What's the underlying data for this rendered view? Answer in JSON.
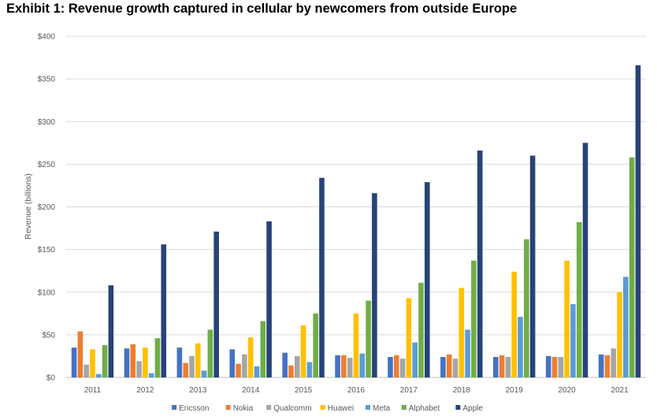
{
  "title": "Exhibit 1: Revenue growth captured in cellular by newcomers from outside Europe",
  "chart_data": {
    "type": "bar",
    "title": "Exhibit 1: Revenue growth captured in cellular by newcomers from outside Europe",
    "xlabel": "",
    "ylabel": "Revenue (billions)",
    "ylim": [
      0,
      400
    ],
    "yticks": [
      0,
      50,
      100,
      150,
      200,
      250,
      300,
      350,
      400
    ],
    "ytick_labels": [
      "$0",
      "$50",
      "$100",
      "$150",
      "$200",
      "$250",
      "$300",
      "$350",
      "$400"
    ],
    "grid": true,
    "legend_position": "bottom",
    "categories": [
      "2011",
      "2012",
      "2013",
      "2014",
      "2015",
      "2016",
      "2017",
      "2018",
      "2019",
      "2020",
      "2021"
    ],
    "series": [
      {
        "name": "Ericsson",
        "color": "#4472C4",
        "values": [
          35,
          34,
          35,
          33,
          29,
          26,
          24,
          24,
          24,
          25,
          27
        ]
      },
      {
        "name": "Nokia",
        "color": "#ED7D31",
        "values": [
          54,
          39,
          17,
          16,
          14,
          26,
          26,
          27,
          26,
          24,
          26
        ]
      },
      {
        "name": "Qualcomm",
        "color": "#A5A5A5",
        "values": [
          15,
          19,
          25,
          27,
          25,
          23,
          22,
          22,
          24,
          24,
          34
        ]
      },
      {
        "name": "Huawei",
        "color": "#FFC000",
        "values": [
          33,
          35,
          40,
          47,
          61,
          75,
          93,
          105,
          124,
          137,
          100
        ]
      },
      {
        "name": "Meta",
        "color": "#5B9BD5",
        "values": [
          4,
          5,
          8,
          13,
          18,
          28,
          41,
          56,
          71,
          86,
          118
        ]
      },
      {
        "name": "Alphabet",
        "color": "#70AD47",
        "values": [
          38,
          46,
          56,
          66,
          75,
          90,
          111,
          137,
          162,
          182,
          258
        ]
      },
      {
        "name": "Apple",
        "color": "#264478",
        "values": [
          108,
          156,
          171,
          183,
          234,
          216,
          229,
          266,
          260,
          275,
          366
        ]
      }
    ]
  }
}
